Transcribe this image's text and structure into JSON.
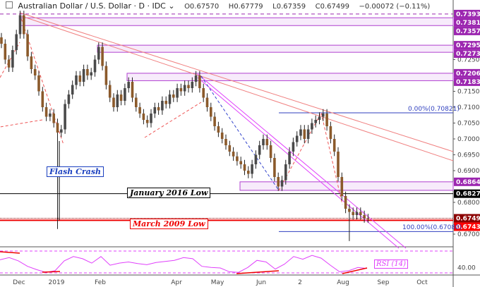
{
  "header": {
    "title": "Australian Dollar / U.S. Dollar · D · IDC",
    "open": "O0.67570",
    "high": "H0.67779",
    "low": "L0.67359",
    "close": "C0.67499",
    "change": "−0.00072 (−0.11%)"
  },
  "annotations": {
    "flash_crash": "Flash Crash",
    "jan2016": "January 2016 Low",
    "mar2009": "March 2009 Low",
    "fib0": "0.00%(0.70821)",
    "fib100": "100.00%(0.67080)",
    "rsi": "RSI (14)"
  },
  "chart_data": {
    "type": "candlestick",
    "title": "Australian Dollar / U.S. Dollar · D · IDC",
    "x_tick_labels": [
      "Dec",
      "2019",
      "Feb",
      "Apr",
      "May",
      "Jun",
      "2",
      "Aug",
      "Sep",
      "Oct"
    ],
    "y_tick_labels": [
      "0.72500",
      "0.71500",
      "0.71000",
      "0.70500",
      "0.70000",
      "0.69500",
      "0.69000",
      "0.68000",
      "0.67000"
    ],
    "ylim": [
      0.665,
      0.745
    ],
    "closes": [
      0.73,
      0.725,
      0.7225,
      0.728,
      0.733,
      0.739,
      0.733,
      0.726,
      0.722,
      0.72,
      0.715,
      0.71,
      0.707,
      0.708,
      0.705,
      0.702,
      0.703,
      0.711,
      0.714,
      0.717,
      0.72,
      0.718,
      0.722,
      0.72,
      0.721,
      0.725,
      0.729,
      0.723,
      0.717,
      0.713,
      0.71,
      0.714,
      0.712,
      0.716,
      0.718,
      0.713,
      0.71,
      0.708,
      0.706,
      0.705,
      0.708,
      0.71,
      0.709,
      0.712,
      0.711,
      0.714,
      0.713,
      0.716,
      0.715,
      0.717,
      0.716,
      0.718,
      0.72,
      0.716,
      0.713,
      0.71,
      0.707,
      0.704,
      0.702,
      0.7,
      0.698,
      0.696,
      0.6945,
      0.693,
      0.692,
      0.69,
      0.689,
      0.692,
      0.695,
      0.698,
      0.7,
      0.698,
      0.694,
      0.688,
      0.685,
      0.687,
      0.692,
      0.696,
      0.699,
      0.701,
      0.703,
      0.7,
      0.703,
      0.705,
      0.706,
      0.707,
      0.708,
      0.704,
      0.7,
      0.696,
      0.688,
      0.682,
      0.678,
      0.677,
      0.676,
      0.677,
      0.676,
      0.675,
      0.67499
    ],
    "wick_lows": {
      "15": 0.6716,
      "93": 0.6678
    },
    "levels": [
      {
        "value": "0.73935",
        "color": "#9c27b0",
        "style": "dashed"
      },
      {
        "value": "0.73818",
        "color": "#9c27b0"
      },
      {
        "value": "0.73572",
        "color": "#9c27b0"
      },
      {
        "value": "0.72953",
        "color": "#9c27b0"
      },
      {
        "value": "0.72730",
        "color": "#9c27b0"
      },
      {
        "value": "0.72069",
        "color": "#9c27b0"
      },
      {
        "value": "0.71835",
        "color": "#9c27b0"
      },
      {
        "value": "0.68648",
        "color": "#9c27b0"
      },
      {
        "value": "0.68274",
        "color": "#000000"
      },
      {
        "value": "0.67499",
        "color": "#8b0000"
      },
      {
        "value": "0.67435",
        "color": "#ff0000"
      }
    ],
    "rsi": {
      "name": "RSI (14)",
      "tick_label": "40.00",
      "bands": [
        30,
        70
      ],
      "values": [
        54,
        58,
        52,
        42,
        36,
        31,
        34,
        52,
        60,
        56,
        48,
        60,
        44,
        48,
        50,
        47,
        45,
        49,
        51,
        53,
        58,
        56,
        42,
        40,
        39,
        32,
        31,
        40,
        53,
        50,
        37,
        46,
        60,
        55,
        62,
        57,
        44,
        32,
        34,
        40,
        38
      ]
    },
    "colors": {
      "up": "#4a4a4a",
      "down": "#8b5a2b",
      "zone": "#9c27b0",
      "rsi": "#e040fb"
    }
  }
}
